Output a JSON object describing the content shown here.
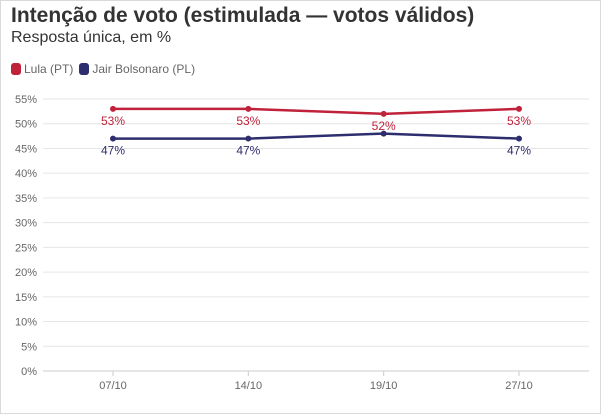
{
  "header": {
    "title": "Intenção de voto (estimulada — votos válidos)",
    "subtitle": "Resposta única, em %"
  },
  "legend": {
    "items": [
      {
        "label": "Lula (PT)",
        "color": "#c0223a"
      },
      {
        "label": "Jair Bolsonaro (PL)",
        "color": "#2e2e6e"
      }
    ]
  },
  "chart_data": {
    "type": "line",
    "title": "Intenção de voto (estimulada — votos válidos)",
    "subtitle": "Resposta única, em %",
    "categories": [
      "07/10",
      "14/10",
      "19/10",
      "27/10"
    ],
    "series": [
      {
        "name": "Lula (PT)",
        "color": "#c0223a",
        "values": [
          53,
          53,
          52,
          53
        ],
        "labels": [
          "53%",
          "53%",
          "52%",
          "53%"
        ]
      },
      {
        "name": "Jair Bolsonaro (PL)",
        "color": "#2e2e6e",
        "values": [
          47,
          47,
          48,
          47
        ],
        "labels": [
          "47%",
          "47%",
          "",
          "47%"
        ]
      }
    ],
    "ylim": [
      0,
      55
    ],
    "yticks": [
      "0%",
      "5%",
      "10%",
      "15%",
      "20%",
      "25%",
      "30%",
      "35%",
      "40%",
      "45%",
      "50%",
      "55%"
    ],
    "grid": true,
    "legend": "top-left"
  }
}
